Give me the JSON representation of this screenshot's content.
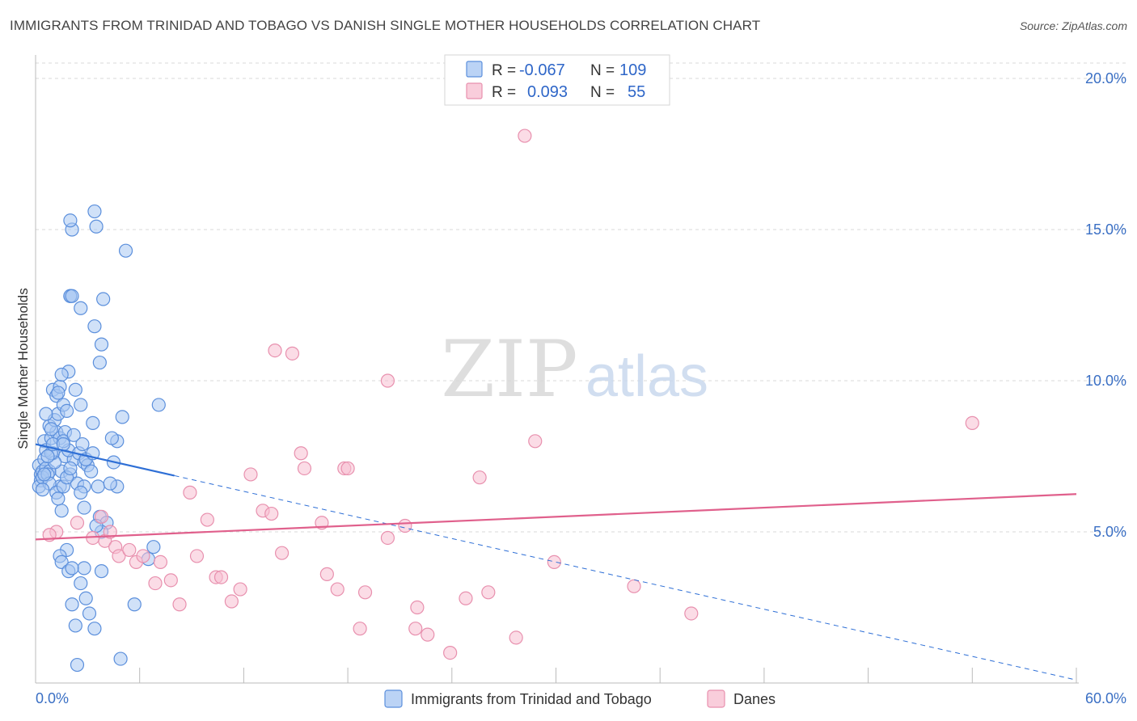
{
  "header": {
    "title": "IMMIGRANTS FROM TRINIDAD AND TOBAGO VS DANISH SINGLE MOTHER HOUSEHOLDS CORRELATION CHART",
    "source": "Source: ZipAtlas.com"
  },
  "watermark": {
    "zip": "ZIP",
    "atlas": "atlas"
  },
  "colors": {
    "blue_fill": "#aac8f2",
    "blue_stroke": "#5b8fdc",
    "blue_line": "#2e6fd6",
    "pink_fill": "#f7c0d2",
    "pink_stroke": "#e890ae",
    "pink_line": "#e0608c",
    "tick": "#3a6fc4",
    "grid": "#d8d8d8"
  },
  "legend": {
    "r_label": "R =",
    "n_label": "N =",
    "rows": [
      {
        "r": "-0.067",
        "n": "109"
      },
      {
        "r": "0.093",
        "n": "55"
      }
    ]
  },
  "chart_data": {
    "type": "scatter",
    "title": "IMMIGRANTS FROM TRINIDAD AND TOBAGO VS DANISH SINGLE MOTHER HOUSEHOLDS CORRELATION CHART",
    "xlabel": "",
    "ylabel": "Single Mother Households",
    "xlim": [
      0,
      60
    ],
    "ylim": [
      0,
      20
    ],
    "x_tick_labels": [
      "0.0%",
      "60.0%"
    ],
    "y_ticks": [
      5,
      10,
      15,
      20
    ],
    "y_tick_labels": [
      "5.0%",
      "10.0%",
      "15.0%",
      "20.0%"
    ],
    "grid": true,
    "series": [
      {
        "name": "Immigrants from Trinidad and Tobago",
        "r": -0.067,
        "n": 109,
        "trend": {
          "x0": 0,
          "y0": 7.9,
          "x1": 60,
          "y1": 0.1,
          "solid_until": 8
        },
        "points": [
          [
            0.2,
            7.2
          ],
          [
            0.3,
            6.9
          ],
          [
            0.4,
            7.0
          ],
          [
            0.5,
            7.4
          ],
          [
            0.3,
            6.7
          ],
          [
            0.6,
            7.1
          ],
          [
            0.8,
            7.0
          ],
          [
            0.2,
            6.5
          ],
          [
            0.4,
            6.8
          ],
          [
            0.7,
            6.9
          ],
          [
            0.5,
            8.0
          ],
          [
            0.9,
            8.1
          ],
          [
            1.0,
            7.6
          ],
          [
            0.6,
            7.7
          ],
          [
            1.2,
            8.3
          ],
          [
            0.8,
            8.5
          ],
          [
            1.4,
            8.1
          ],
          [
            1.1,
            8.7
          ],
          [
            1.3,
            8.9
          ],
          [
            0.6,
            8.9
          ],
          [
            1.0,
            9.7
          ],
          [
            1.2,
            9.5
          ],
          [
            1.4,
            9.8
          ],
          [
            1.6,
            9.2
          ],
          [
            1.9,
            10.3
          ],
          [
            1.5,
            10.2
          ],
          [
            2.3,
            9.7
          ],
          [
            2.6,
            9.2
          ],
          [
            1.8,
            9.0
          ],
          [
            1.3,
            9.6
          ],
          [
            1.7,
            7.5
          ],
          [
            2.2,
            7.4
          ],
          [
            1.9,
            7.7
          ],
          [
            2.5,
            7.6
          ],
          [
            2.8,
            7.3
          ],
          [
            1.5,
            7.0
          ],
          [
            2.0,
            6.9
          ],
          [
            2.4,
            6.6
          ],
          [
            3.0,
            7.2
          ],
          [
            1.4,
            6.5
          ],
          [
            0.8,
            6.6
          ],
          [
            1.2,
            6.3
          ],
          [
            1.6,
            6.5
          ],
          [
            2.8,
            6.5
          ],
          [
            3.6,
            6.5
          ],
          [
            4.7,
            6.5
          ],
          [
            4.3,
            6.6
          ],
          [
            4.5,
            7.3
          ],
          [
            4.7,
            8.0
          ],
          [
            4.4,
            8.1
          ],
          [
            3.3,
            8.6
          ],
          [
            5.0,
            8.8
          ],
          [
            7.1,
            9.2
          ],
          [
            3.7,
            10.6
          ],
          [
            3.8,
            11.2
          ],
          [
            3.4,
            11.8
          ],
          [
            2.6,
            12.4
          ],
          [
            3.9,
            12.7
          ],
          [
            2.0,
            12.8
          ],
          [
            2.0,
            12.8
          ],
          [
            2.1,
            12.8
          ],
          [
            5.2,
            14.3
          ],
          [
            2.1,
            15.0
          ],
          [
            2.0,
            15.3
          ],
          [
            3.5,
            15.1
          ],
          [
            3.4,
            15.6
          ],
          [
            1.5,
            5.7
          ],
          [
            2.8,
            5.8
          ],
          [
            3.7,
            5.5
          ],
          [
            4.1,
            5.3
          ],
          [
            3.8,
            5.0
          ],
          [
            3.5,
            5.2
          ],
          [
            6.8,
            4.5
          ],
          [
            1.8,
            4.4
          ],
          [
            1.4,
            4.2
          ],
          [
            1.5,
            4.0
          ],
          [
            6.5,
            4.1
          ],
          [
            2.8,
            3.8
          ],
          [
            3.8,
            3.7
          ],
          [
            1.9,
            3.7
          ],
          [
            2.1,
            3.8
          ],
          [
            2.6,
            3.3
          ],
          [
            2.9,
            2.8
          ],
          [
            5.7,
            2.6
          ],
          [
            2.1,
            2.6
          ],
          [
            3.1,
            2.3
          ],
          [
            2.3,
            1.9
          ],
          [
            3.4,
            1.8
          ],
          [
            2.4,
            0.6
          ],
          [
            4.9,
            0.8
          ],
          [
            1.7,
            8.3
          ],
          [
            2.9,
            7.4
          ],
          [
            1.1,
            7.3
          ],
          [
            0.9,
            7.6
          ],
          [
            1.6,
            8.0
          ],
          [
            2.2,
            8.2
          ],
          [
            1.8,
            6.8
          ],
          [
            0.4,
            6.4
          ],
          [
            0.7,
            7.5
          ],
          [
            2.6,
            6.3
          ],
          [
            3.2,
            7.0
          ],
          [
            1.0,
            7.9
          ],
          [
            2.0,
            7.1
          ],
          [
            1.3,
            6.1
          ],
          [
            2.7,
            7.9
          ],
          [
            0.9,
            8.4
          ],
          [
            1.6,
            7.9
          ],
          [
            3.3,
            7.6
          ],
          [
            0.5,
            6.9
          ]
        ]
      },
      {
        "name": "Danes",
        "r": 0.093,
        "n": 55,
        "trend": {
          "x0": 0,
          "y0": 4.75,
          "x1": 60,
          "y1": 6.25
        },
        "points": [
          [
            28.2,
            18.1
          ],
          [
            13.8,
            11.0
          ],
          [
            14.8,
            10.9
          ],
          [
            20.3,
            10.0
          ],
          [
            54.0,
            8.6
          ],
          [
            28.8,
            8.0
          ],
          [
            15.3,
            7.6
          ],
          [
            15.5,
            7.1
          ],
          [
            17.8,
            7.1
          ],
          [
            18.0,
            7.1
          ],
          [
            12.4,
            6.9
          ],
          [
            25.6,
            6.8
          ],
          [
            8.9,
            6.3
          ],
          [
            13.1,
            5.7
          ],
          [
            13.6,
            5.6
          ],
          [
            16.5,
            5.3
          ],
          [
            9.9,
            5.4
          ],
          [
            21.3,
            5.2
          ],
          [
            20.3,
            4.8
          ],
          [
            14.2,
            4.3
          ],
          [
            9.3,
            4.2
          ],
          [
            29.9,
            4.0
          ],
          [
            3.8,
            5.5
          ],
          [
            2.4,
            5.3
          ],
          [
            1.2,
            5.0
          ],
          [
            0.8,
            4.9
          ],
          [
            4.0,
            4.7
          ],
          [
            4.3,
            5.0
          ],
          [
            4.6,
            4.5
          ],
          [
            4.8,
            4.2
          ],
          [
            5.4,
            4.4
          ],
          [
            5.8,
            4.0
          ],
          [
            7.2,
            4.0
          ],
          [
            6.2,
            4.2
          ],
          [
            6.9,
            3.3
          ],
          [
            7.8,
            3.4
          ],
          [
            10.4,
            3.5
          ],
          [
            10.7,
            3.5
          ],
          [
            11.8,
            3.1
          ],
          [
            16.8,
            3.6
          ],
          [
            17.4,
            3.1
          ],
          [
            19.0,
            3.0
          ],
          [
            22.0,
            2.5
          ],
          [
            8.3,
            2.6
          ],
          [
            11.3,
            2.7
          ],
          [
            24.8,
            2.8
          ],
          [
            26.1,
            3.0
          ],
          [
            34.5,
            3.2
          ],
          [
            37.8,
            2.3
          ],
          [
            18.7,
            1.8
          ],
          [
            22.6,
            1.6
          ],
          [
            21.9,
            1.8
          ],
          [
            27.7,
            1.5
          ],
          [
            23.9,
            1.0
          ],
          [
            3.3,
            4.8
          ]
        ]
      }
    ]
  }
}
